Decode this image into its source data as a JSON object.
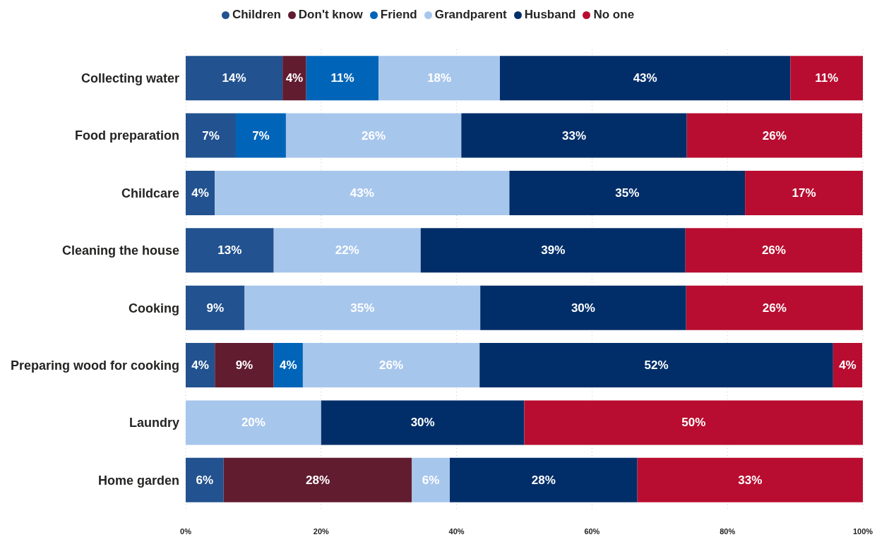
{
  "chart_data": {
    "type": "bar",
    "orientation": "horizontal",
    "stacked": true,
    "categories": [
      "Collecting water",
      "Food preparation",
      "Childcare",
      "Cleaning the house",
      "Cooking",
      "Preparing wood for cooking",
      "Laundry",
      "Home garden"
    ],
    "series": [
      {
        "name": "Children",
        "color": "#22528f",
        "values": [
          14.3,
          7.4,
          4.3,
          13.0,
          8.7,
          4.3,
          null,
          5.6
        ],
        "value_labels": [
          "14%",
          "7%",
          "4%",
          "13%",
          "9%",
          "4%",
          null,
          "6%"
        ]
      },
      {
        "name": "Don't know",
        "color": "#611c30",
        "values": [
          3.5,
          null,
          null,
          null,
          null,
          8.7,
          null,
          27.8
        ],
        "value_labels": [
          "4%",
          null,
          null,
          null,
          null,
          "9%",
          null,
          "28%"
        ]
      },
      {
        "name": "Friend",
        "color": "#0065b8",
        "values": [
          10.7,
          7.4,
          null,
          null,
          null,
          4.3,
          null,
          null
        ],
        "value_labels": [
          "11%",
          "7%",
          null,
          null,
          null,
          "4%",
          null,
          null
        ]
      },
      {
        "name": "Grandparent",
        "color": "#a7c6ec",
        "values": [
          17.9,
          25.9,
          43.5,
          21.7,
          34.8,
          26.1,
          20.0,
          5.6
        ],
        "value_labels": [
          "18%",
          "26%",
          "43%",
          "22%",
          "35%",
          "26%",
          "20%",
          "6%"
        ]
      },
      {
        "name": "Husband",
        "color": "#012e69",
        "values": [
          42.9,
          33.3,
          34.8,
          39.1,
          30.4,
          52.2,
          30.0,
          27.7
        ],
        "value_labels": [
          "43%",
          "33%",
          "35%",
          "39%",
          "30%",
          "52%",
          "30%",
          "28%"
        ]
      },
      {
        "name": "No one",
        "color": "#b80d30",
        "values": [
          10.7,
          25.9,
          17.4,
          26.1,
          26.1,
          4.3,
          50.0,
          33.3
        ],
        "value_labels": [
          "11%",
          "26%",
          "17%",
          "26%",
          "26%",
          "4%",
          "50%",
          "33%"
        ]
      }
    ],
    "xlim": [
      0,
      100
    ],
    "xticks": [
      {
        "value": 0,
        "label": "0%"
      },
      {
        "value": 20,
        "label": "20%"
      },
      {
        "value": 40,
        "label": "40%"
      },
      {
        "value": 60,
        "label": "60%"
      },
      {
        "value": 80,
        "label": "80%"
      },
      {
        "value": 100,
        "label": "100%"
      }
    ],
    "grid": "x",
    "legend": "top"
  }
}
